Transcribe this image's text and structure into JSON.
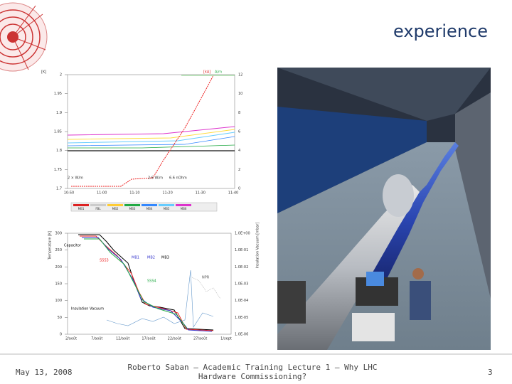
{
  "header": {
    "title": "experience"
  },
  "figures": [
    {
      "y_label": "[K]",
      "y2_label": "[kA]",
      "y2_label_b": "A/m",
      "yticks": [
        "2",
        "1.95",
        "1.9",
        "1.85",
        "1.8",
        "1.75",
        "1.7"
      ],
      "y2ticks": [
        "12",
        "10",
        "8",
        "6",
        "4",
        "2",
        "0"
      ],
      "xticks": [
        "10:50",
        "11:00",
        "11:10",
        "11:20",
        "11:30",
        "11:40"
      ],
      "annotations": [
        "2 × W/m",
        "2.6 W/m",
        "6.6 nOhm"
      ],
      "legend": [
        "MB1",
        "FBL",
        "MB2",
        "MB3",
        "MB4",
        "MB5",
        "MB6"
      ]
    },
    {
      "y_label": "Temperature [K]",
      "y2_label": "Insulation Vacuum [mbar]",
      "yticks": [
        "300",
        "250",
        "200",
        "150",
        "100",
        "50",
        "0"
      ],
      "y2ticks": [
        "1.0E+00",
        "1.0E-01",
        "1.0E-02",
        "1.0E-03",
        "1.0E-04",
        "1.0E-05",
        "1.0E-06"
      ],
      "xticks": [
        "2/août",
        "7/août",
        "12/août",
        "17/août",
        "22/août",
        "27/août",
        "1/sept"
      ],
      "annotations": [
        "Capacitor",
        "SSS3",
        "MB1",
        "MB2",
        "MB3",
        "SSS4",
        "Insulation Vacuum",
        "NPR"
      ]
    }
  ],
  "footer": {
    "date": "May 13, 2008",
    "text": "Roberto Saban – Academic Training Lecture 1 – Why LHC Hardware Commissioning?",
    "page": "3"
  }
}
